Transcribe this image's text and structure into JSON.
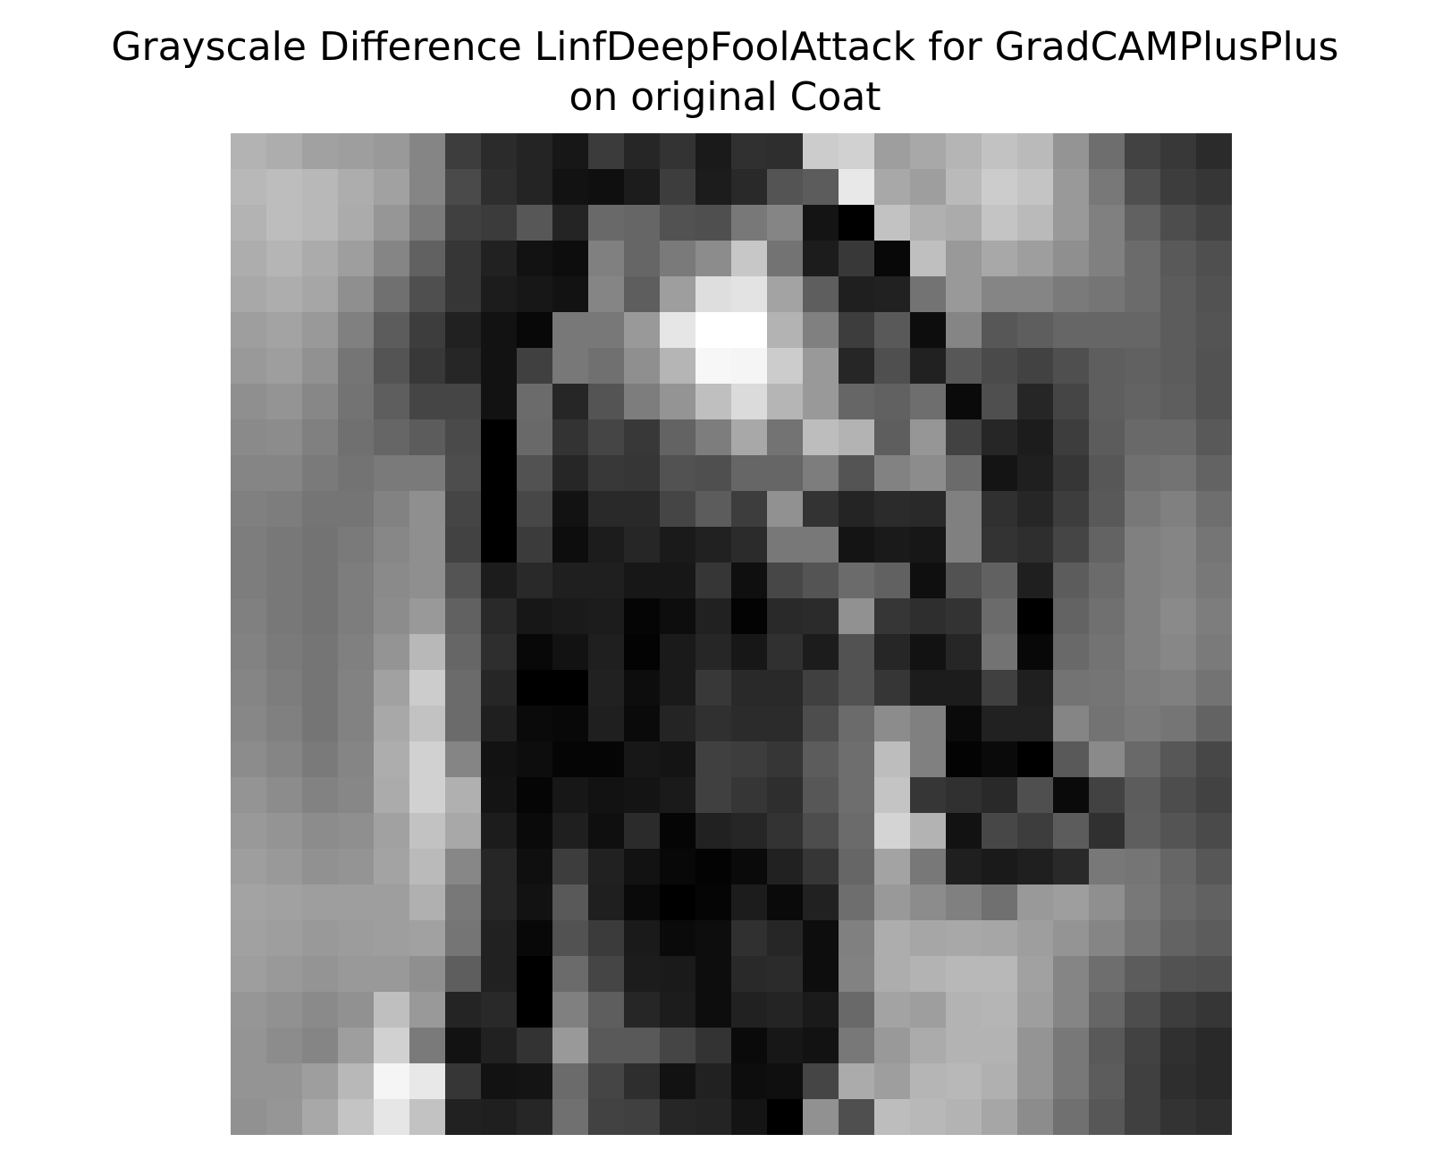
{
  "chart_data": {
    "type": "heatmap",
    "title_lines": [
      "Grayscale Difference LinfDeepFoolAttack for GradCAMPlusPlus",
      "on original Coat"
    ],
    "colormap": "gray",
    "axes_visible": false,
    "colorbar": false,
    "rows": 28,
    "cols": 28,
    "values": [
      [
        0.7,
        0.68,
        0.63,
        0.62,
        0.6,
        0.52,
        0.24,
        0.17,
        0.14,
        0.09,
        0.23,
        0.15,
        0.2,
        0.1,
        0.19,
        0.18,
        0.8,
        0.82,
        0.62,
        0.66,
        0.71,
        0.76,
        0.73,
        0.58,
        0.43,
        0.26,
        0.22,
        0.17
      ],
      [
        0.72,
        0.74,
        0.72,
        0.68,
        0.63,
        0.52,
        0.29,
        0.18,
        0.14,
        0.07,
        0.06,
        0.11,
        0.24,
        0.11,
        0.16,
        0.33,
        0.36,
        0.91,
        0.66,
        0.62,
        0.73,
        0.8,
        0.77,
        0.6,
        0.47,
        0.31,
        0.24,
        0.21
      ],
      [
        0.7,
        0.74,
        0.72,
        0.67,
        0.59,
        0.48,
        0.25,
        0.23,
        0.34,
        0.14,
        0.41,
        0.4,
        0.32,
        0.31,
        0.47,
        0.52,
        0.08,
        0.0,
        0.76,
        0.69,
        0.67,
        0.77,
        0.73,
        0.6,
        0.5,
        0.38,
        0.3,
        0.26
      ],
      [
        0.68,
        0.71,
        0.67,
        0.62,
        0.52,
        0.38,
        0.21,
        0.13,
        0.07,
        0.05,
        0.5,
        0.4,
        0.48,
        0.55,
        0.78,
        0.45,
        0.11,
        0.22,
        0.03,
        0.75,
        0.6,
        0.66,
        0.62,
        0.56,
        0.5,
        0.42,
        0.35,
        0.31
      ],
      [
        0.66,
        0.68,
        0.65,
        0.56,
        0.44,
        0.31,
        0.21,
        0.11,
        0.09,
        0.07,
        0.52,
        0.37,
        0.62,
        0.87,
        0.89,
        0.64,
        0.37,
        0.12,
        0.13,
        0.45,
        0.6,
        0.52,
        0.52,
        0.48,
        0.46,
        0.42,
        0.36,
        0.32
      ],
      [
        0.62,
        0.64,
        0.6,
        0.5,
        0.36,
        0.24,
        0.13,
        0.07,
        0.03,
        0.47,
        0.47,
        0.6,
        0.9,
        1.0,
        1.0,
        0.7,
        0.5,
        0.24,
        0.35,
        0.05,
        0.52,
        0.34,
        0.37,
        0.4,
        0.4,
        0.4,
        0.36,
        0.33
      ],
      [
        0.6,
        0.62,
        0.57,
        0.46,
        0.33,
        0.22,
        0.15,
        0.07,
        0.25,
        0.47,
        0.44,
        0.56,
        0.71,
        0.97,
        0.96,
        0.8,
        0.6,
        0.15,
        0.31,
        0.13,
        0.34,
        0.29,
        0.26,
        0.31,
        0.37,
        0.38,
        0.36,
        0.32
      ],
      [
        0.56,
        0.58,
        0.53,
        0.45,
        0.37,
        0.27,
        0.27,
        0.07,
        0.42,
        0.15,
        0.33,
        0.49,
        0.58,
        0.75,
        0.86,
        0.71,
        0.6,
        0.4,
        0.38,
        0.43,
        0.04,
        0.31,
        0.15,
        0.27,
        0.37,
        0.39,
        0.37,
        0.32
      ],
      [
        0.54,
        0.55,
        0.5,
        0.44,
        0.4,
        0.36,
        0.29,
        0.0,
        0.41,
        0.2,
        0.27,
        0.22,
        0.39,
        0.49,
        0.66,
        0.45,
        0.74,
        0.7,
        0.37,
        0.59,
        0.26,
        0.15,
        0.11,
        0.24,
        0.36,
        0.41,
        0.41,
        0.35
      ],
      [
        0.52,
        0.52,
        0.48,
        0.45,
        0.48,
        0.48,
        0.3,
        0.0,
        0.32,
        0.15,
        0.22,
        0.21,
        0.32,
        0.31,
        0.4,
        0.4,
        0.49,
        0.33,
        0.51,
        0.55,
        0.42,
        0.08,
        0.12,
        0.21,
        0.34,
        0.44,
        0.45,
        0.39
      ],
      [
        0.5,
        0.49,
        0.46,
        0.46,
        0.51,
        0.56,
        0.27,
        0.0,
        0.28,
        0.07,
        0.16,
        0.16,
        0.27,
        0.36,
        0.24,
        0.57,
        0.2,
        0.14,
        0.17,
        0.16,
        0.5,
        0.19,
        0.15,
        0.24,
        0.35,
        0.47,
        0.5,
        0.43
      ],
      [
        0.49,
        0.47,
        0.45,
        0.48,
        0.53,
        0.56,
        0.26,
        0.0,
        0.23,
        0.05,
        0.11,
        0.15,
        0.1,
        0.13,
        0.17,
        0.47,
        0.47,
        0.08,
        0.1,
        0.09,
        0.5,
        0.2,
        0.18,
        0.27,
        0.39,
        0.5,
        0.52,
        0.46
      ],
      [
        0.49,
        0.47,
        0.45,
        0.49,
        0.54,
        0.56,
        0.33,
        0.11,
        0.16,
        0.12,
        0.12,
        0.09,
        0.09,
        0.21,
        0.06,
        0.28,
        0.33,
        0.42,
        0.38,
        0.06,
        0.32,
        0.38,
        0.12,
        0.36,
        0.42,
        0.5,
        0.52,
        0.47
      ],
      [
        0.5,
        0.47,
        0.45,
        0.49,
        0.55,
        0.6,
        0.38,
        0.16,
        0.09,
        0.1,
        0.11,
        0.02,
        0.05,
        0.13,
        0.01,
        0.16,
        0.17,
        0.57,
        0.21,
        0.18,
        0.2,
        0.42,
        0.0,
        0.39,
        0.44,
        0.5,
        0.54,
        0.49
      ],
      [
        0.51,
        0.48,
        0.46,
        0.5,
        0.58,
        0.72,
        0.4,
        0.18,
        0.03,
        0.07,
        0.12,
        0.01,
        0.1,
        0.15,
        0.09,
        0.19,
        0.11,
        0.32,
        0.15,
        0.07,
        0.15,
        0.45,
        0.03,
        0.41,
        0.45,
        0.5,
        0.53,
        0.48
      ],
      [
        0.52,
        0.49,
        0.46,
        0.51,
        0.63,
        0.8,
        0.42,
        0.15,
        0.0,
        0.0,
        0.13,
        0.05,
        0.1,
        0.22,
        0.16,
        0.16,
        0.25,
        0.32,
        0.21,
        0.11,
        0.11,
        0.25,
        0.12,
        0.45,
        0.46,
        0.49,
        0.5,
        0.45
      ],
      [
        0.53,
        0.5,
        0.46,
        0.51,
        0.66,
        0.76,
        0.42,
        0.12,
        0.04,
        0.03,
        0.12,
        0.04,
        0.14,
        0.19,
        0.17,
        0.17,
        0.3,
        0.42,
        0.55,
        0.5,
        0.04,
        0.13,
        0.13,
        0.52,
        0.45,
        0.48,
        0.46,
        0.39
      ],
      [
        0.55,
        0.52,
        0.48,
        0.52,
        0.68,
        0.82,
        0.52,
        0.07,
        0.05,
        0.02,
        0.02,
        0.09,
        0.08,
        0.25,
        0.24,
        0.21,
        0.36,
        0.43,
        0.74,
        0.5,
        0.01,
        0.04,
        0.0,
        0.35,
        0.54,
        0.41,
        0.34,
        0.28
      ],
      [
        0.58,
        0.55,
        0.51,
        0.53,
        0.67,
        0.82,
        0.69,
        0.08,
        0.02,
        0.09,
        0.07,
        0.08,
        0.1,
        0.25,
        0.21,
        0.18,
        0.34,
        0.43,
        0.77,
        0.21,
        0.19,
        0.16,
        0.31,
        0.04,
        0.26,
        0.36,
        0.3,
        0.26
      ],
      [
        0.6,
        0.58,
        0.55,
        0.56,
        0.63,
        0.76,
        0.66,
        0.11,
        0.04,
        0.12,
        0.06,
        0.17,
        0.02,
        0.13,
        0.15,
        0.2,
        0.3,
        0.42,
        0.83,
        0.7,
        0.07,
        0.28,
        0.24,
        0.36,
        0.19,
        0.37,
        0.33,
        0.29
      ],
      [
        0.62,
        0.6,
        0.57,
        0.58,
        0.64,
        0.73,
        0.53,
        0.15,
        0.06,
        0.24,
        0.13,
        0.07,
        0.03,
        0.01,
        0.04,
        0.13,
        0.21,
        0.4,
        0.64,
        0.47,
        0.12,
        0.1,
        0.12,
        0.16,
        0.47,
        0.46,
        0.4,
        0.34
      ],
      [
        0.64,
        0.63,
        0.62,
        0.62,
        0.62,
        0.69,
        0.47,
        0.15,
        0.07,
        0.35,
        0.12,
        0.04,
        0.0,
        0.02,
        0.11,
        0.04,
        0.13,
        0.43,
        0.6,
        0.55,
        0.5,
        0.44,
        0.6,
        0.62,
        0.56,
        0.47,
        0.41,
        0.38
      ],
      [
        0.63,
        0.62,
        0.6,
        0.61,
        0.62,
        0.63,
        0.46,
        0.13,
        0.03,
        0.32,
        0.23,
        0.1,
        0.04,
        0.05,
        0.19,
        0.15,
        0.05,
        0.5,
        0.68,
        0.65,
        0.66,
        0.65,
        0.62,
        0.58,
        0.52,
        0.45,
        0.39,
        0.36
      ],
      [
        0.62,
        0.6,
        0.58,
        0.6,
        0.6,
        0.56,
        0.37,
        0.13,
        0.0,
        0.42,
        0.27,
        0.11,
        0.1,
        0.05,
        0.16,
        0.17,
        0.05,
        0.51,
        0.68,
        0.7,
        0.72,
        0.72,
        0.63,
        0.52,
        0.43,
        0.36,
        0.32,
        0.31
      ],
      [
        0.59,
        0.57,
        0.54,
        0.57,
        0.75,
        0.6,
        0.14,
        0.16,
        0.0,
        0.5,
        0.37,
        0.15,
        0.11,
        0.05,
        0.13,
        0.14,
        0.1,
        0.41,
        0.64,
        0.62,
        0.7,
        0.71,
        0.62,
        0.52,
        0.4,
        0.3,
        0.24,
        0.21
      ],
      [
        0.58,
        0.55,
        0.52,
        0.62,
        0.82,
        0.48,
        0.07,
        0.13,
        0.2,
        0.6,
        0.35,
        0.35,
        0.27,
        0.2,
        0.04,
        0.09,
        0.07,
        0.47,
        0.6,
        0.67,
        0.7,
        0.7,
        0.58,
        0.47,
        0.35,
        0.26,
        0.19,
        0.16
      ],
      [
        0.58,
        0.58,
        0.62,
        0.72,
        0.96,
        0.91,
        0.21,
        0.07,
        0.08,
        0.42,
        0.27,
        0.18,
        0.07,
        0.13,
        0.05,
        0.06,
        0.27,
        0.67,
        0.62,
        0.71,
        0.72,
        0.69,
        0.58,
        0.47,
        0.36,
        0.25,
        0.18,
        0.16
      ],
      [
        0.57,
        0.59,
        0.66,
        0.77,
        0.9,
        0.76,
        0.13,
        0.12,
        0.15,
        0.44,
        0.26,
        0.25,
        0.15,
        0.14,
        0.08,
        0.0,
        0.57,
        0.31,
        0.74,
        0.72,
        0.7,
        0.65,
        0.55,
        0.44,
        0.34,
        0.25,
        0.2,
        0.18
      ]
    ]
  }
}
